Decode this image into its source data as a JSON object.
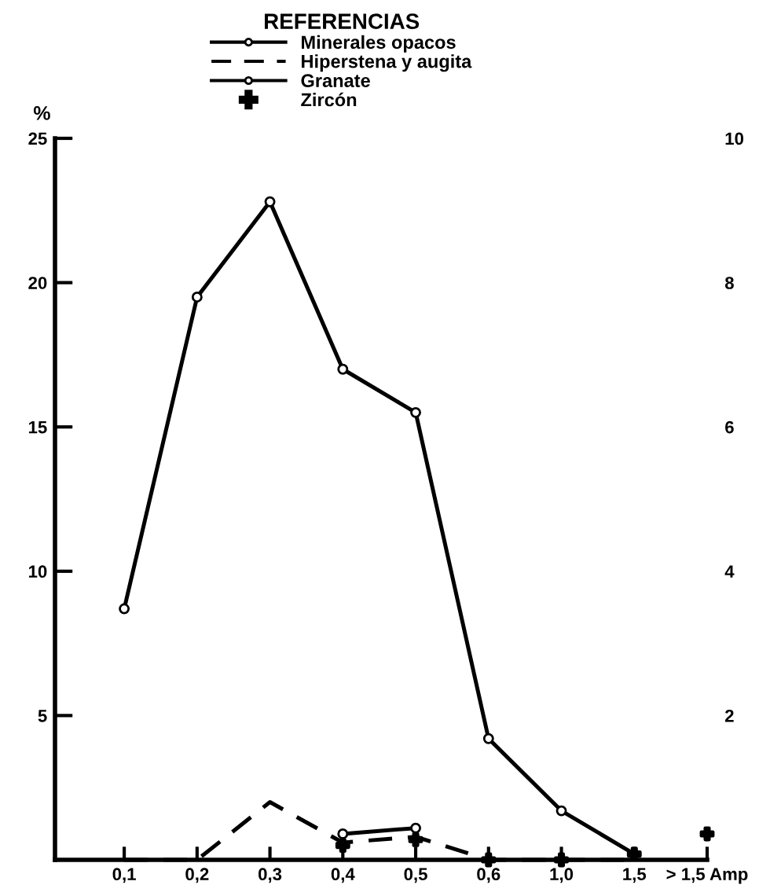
{
  "chart_data": {
    "type": "line",
    "legend_title": "REFERENCIAS",
    "ylabel": "%",
    "categories": [
      "0,1",
      "0,2",
      "0,3",
      "0,4",
      "0,5",
      "0,6",
      "1,0",
      "1,5",
      "> 1,5 Amp"
    ],
    "series": [
      {
        "name": "Minerales opacos",
        "color": "#000000",
        "line_style": "solid",
        "marker": "circle",
        "values": [
          8.7,
          19.5,
          22.8,
          17.0,
          15.5,
          4.2,
          1.7,
          0.2,
          null
        ]
      },
      {
        "name": "Hiperstena y augita",
        "color": "#000000",
        "line_style": "dashed",
        "marker": "none",
        "values": [
          0,
          0,
          2.0,
          0.6,
          0.8,
          0,
          0,
          0,
          null
        ]
      },
      {
        "name": "Granate",
        "color": "#000000",
        "line_style": "solid",
        "marker": "circle",
        "values": [
          null,
          null,
          null,
          0.9,
          1.1,
          null,
          null,
          null,
          null
        ]
      },
      {
        "name": "Zircón",
        "type": "scatter",
        "color": "#000000",
        "marker": "cross",
        "values": [
          null,
          null,
          null,
          0.5,
          0.7,
          0,
          0,
          0.2,
          0.9
        ]
      }
    ],
    "ylim": [
      0,
      25
    ],
    "yticks": [
      5,
      10,
      15,
      20,
      25
    ],
    "y2lim": [
      0,
      10
    ],
    "y2ticks": [
      2,
      4,
      6,
      8,
      10
    ],
    "grid": false,
    "legend": "top"
  }
}
